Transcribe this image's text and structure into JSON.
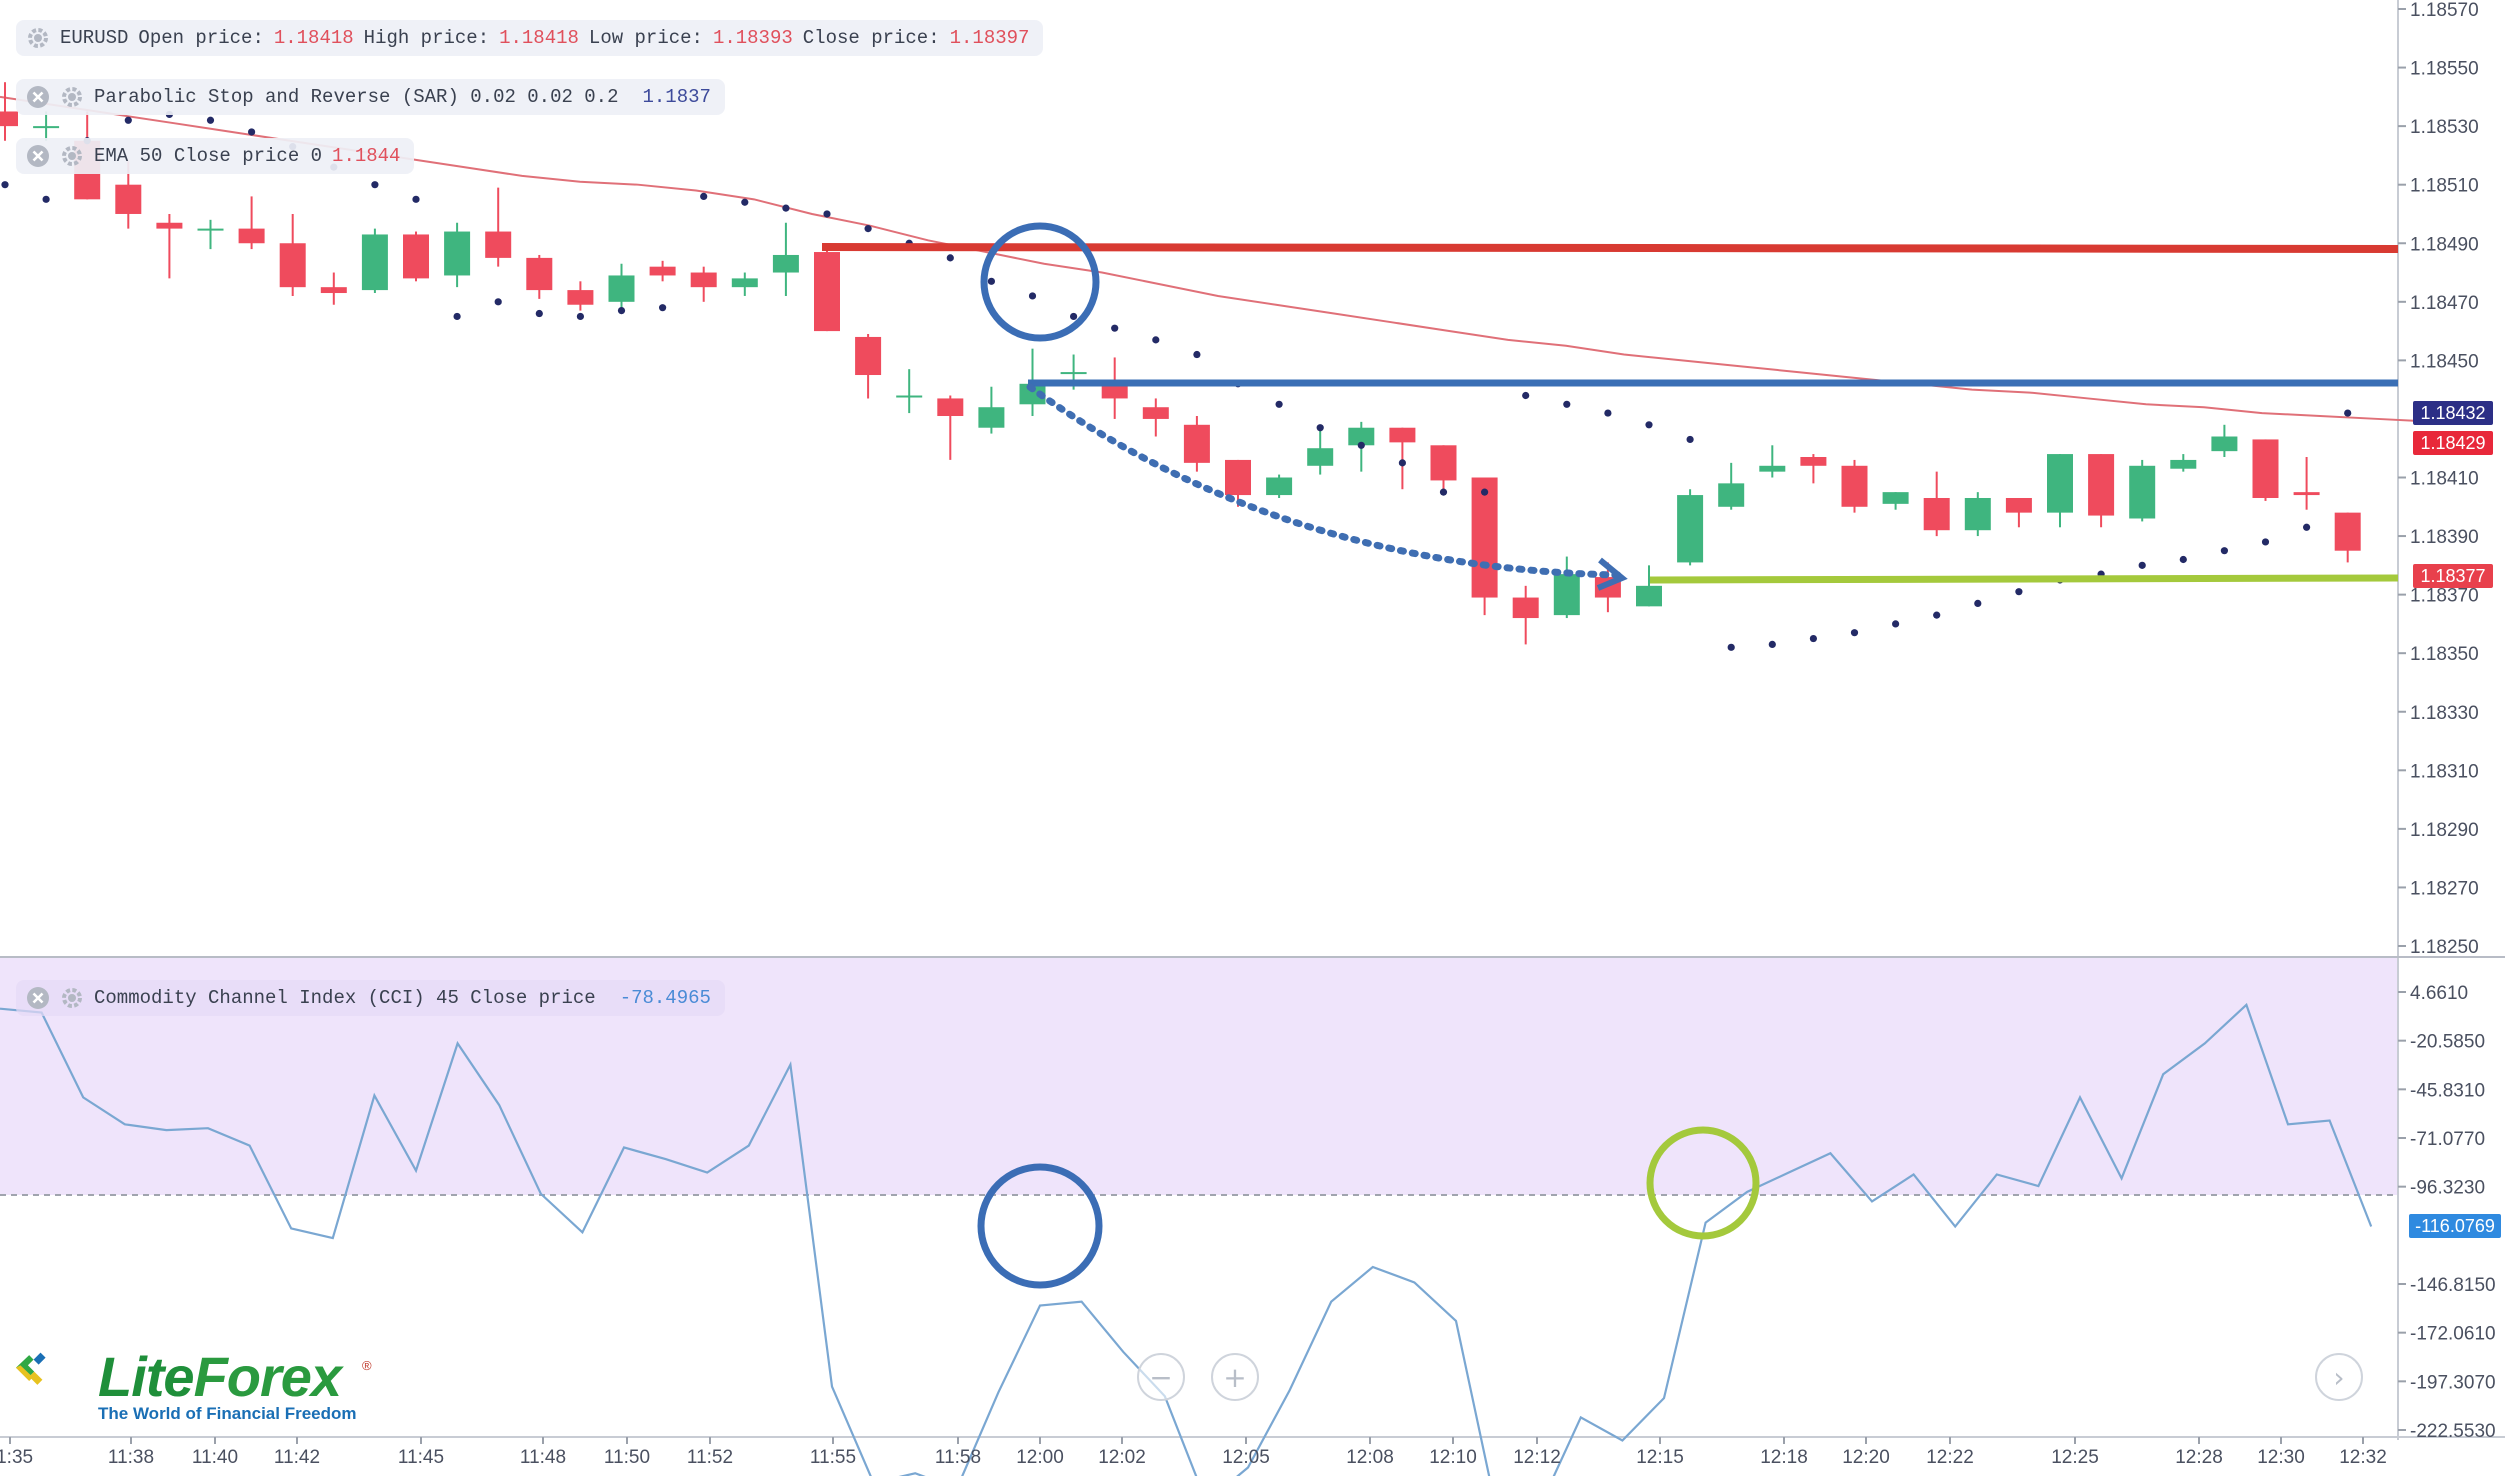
{
  "symbol": "EURUSD",
  "ohlc": {
    "open_label": "Open price:",
    "open": "1.18418",
    "high_label": "High price:",
    "high": "1.18418",
    "low_label": "Low price:",
    "low": "1.18393",
    "close_label": "Close price:",
    "close": "1.18397"
  },
  "indicators": {
    "sar": {
      "label": "Parabolic Stop and Reverse (SAR) 0.02 0.02 0.2",
      "value": "1.1837"
    },
    "ema": {
      "label": "EMA 50 Close price 0",
      "value": "1.1844"
    },
    "cci": {
      "label": "Commodity Channel Index (CCI) 45 Close price",
      "value": "-78.4965"
    }
  },
  "price_axis": {
    "ticks": [
      "1.18570",
      "1.18550",
      "1.18530",
      "1.18510",
      "1.18490",
      "1.18470",
      "1.18450",
      "1.18410",
      "1.18390",
      "1.18370",
      "1.18350",
      "1.18330",
      "1.18310",
      "1.18290",
      "1.18270",
      "1.18250"
    ],
    "badges": [
      {
        "value": "1.18432",
        "color": "#2c2f86"
      },
      {
        "value": "1.18429",
        "color": "#e8283a"
      },
      {
        "value": "1.18377",
        "color": "#e8404c"
      }
    ]
  },
  "cci_axis": {
    "ticks": [
      "4.6610",
      "-20.5850",
      "-45.8310",
      "-71.0770",
      "-96.3230",
      "-146.8150",
      "-172.0610",
      "-197.3070",
      "-222.5530"
    ],
    "badge": {
      "value": "-116.0769",
      "color": "#2f8ae0"
    }
  },
  "time_axis": {
    "labels": [
      "11:35",
      "11:38",
      "11:40",
      "11:42",
      "11:45",
      "11:48",
      "11:50",
      "11:52",
      "11:55",
      "11:58",
      "12:00",
      "12:02",
      "12:05",
      "12:08",
      "12:10",
      "12:12",
      "12:15",
      "12:18",
      "12:20",
      "12:22",
      "12:25",
      "12:28",
      "12:30",
      "12:32"
    ]
  },
  "chart_data": {
    "type": "candlestick",
    "price_ylim": [
      1.1825,
      1.1857
    ],
    "candles": [
      {
        "o": 1.18535,
        "h": 1.18545,
        "l": 1.18525,
        "c": 1.1853
      },
      {
        "o": 1.1853,
        "h": 1.18535,
        "l": 1.18525,
        "c": 1.1853
      },
      {
        "o": 1.18525,
        "h": 1.18535,
        "l": 1.18505,
        "c": 1.18505
      },
      {
        "o": 1.1851,
        "h": 1.18518,
        "l": 1.18495,
        "c": 1.185
      },
      {
        "o": 1.18497,
        "h": 1.185,
        "l": 1.18478,
        "c": 1.18495
      },
      {
        "o": 1.18495,
        "h": 1.18498,
        "l": 1.18488,
        "c": 1.18495
      },
      {
        "o": 1.18495,
        "h": 1.18506,
        "l": 1.18488,
        "c": 1.1849
      },
      {
        "o": 1.1849,
        "h": 1.185,
        "l": 1.18472,
        "c": 1.18475
      },
      {
        "o": 1.18475,
        "h": 1.1848,
        "l": 1.18469,
        "c": 1.18473
      },
      {
        "o": 1.18474,
        "h": 1.18495,
        "l": 1.18473,
        "c": 1.18493
      },
      {
        "o": 1.18493,
        "h": 1.18494,
        "l": 1.18477,
        "c": 1.18478
      },
      {
        "o": 1.18479,
        "h": 1.18497,
        "l": 1.18475,
        "c": 1.18494
      },
      {
        "o": 1.18494,
        "h": 1.18509,
        "l": 1.18482,
        "c": 1.18485
      },
      {
        "o": 1.18485,
        "h": 1.18486,
        "l": 1.18471,
        "c": 1.18474
      },
      {
        "o": 1.18474,
        "h": 1.18477,
        "l": 1.18467,
        "c": 1.18469
      },
      {
        "o": 1.1847,
        "h": 1.18483,
        "l": 1.18467,
        "c": 1.18479
      },
      {
        "o": 1.18482,
        "h": 1.18484,
        "l": 1.18477,
        "c": 1.18479
      },
      {
        "o": 1.1848,
        "h": 1.18482,
        "l": 1.1847,
        "c": 1.18475
      },
      {
        "o": 1.18475,
        "h": 1.1848,
        "l": 1.18472,
        "c": 1.18478
      },
      {
        "o": 1.1848,
        "h": 1.18497,
        "l": 1.18472,
        "c": 1.18486
      },
      {
        "o": 1.18487,
        "h": 1.18488,
        "l": 1.1846,
        "c": 1.1846
      },
      {
        "o": 1.18458,
        "h": 1.18459,
        "l": 1.18437,
        "c": 1.18445
      },
      {
        "o": 1.18438,
        "h": 1.18447,
        "l": 1.18432,
        "c": 1.18438
      },
      {
        "o": 1.18437,
        "h": 1.18438,
        "l": 1.18416,
        "c": 1.18431
      },
      {
        "o": 1.18427,
        "h": 1.18441,
        "l": 1.18425,
        "c": 1.18434
      },
      {
        "o": 1.18435,
        "h": 1.18454,
        "l": 1.18431,
        "c": 1.18442
      },
      {
        "o": 1.18446,
        "h": 1.18452,
        "l": 1.1844,
        "c": 1.18446
      },
      {
        "o": 1.18443,
        "h": 1.18451,
        "l": 1.1843,
        "c": 1.18437
      },
      {
        "o": 1.18434,
        "h": 1.18437,
        "l": 1.18424,
        "c": 1.1843
      },
      {
        "o": 1.18428,
        "h": 1.18431,
        "l": 1.18412,
        "c": 1.18415
      },
      {
        "o": 1.18416,
        "h": 1.18416,
        "l": 1.184,
        "c": 1.18404
      },
      {
        "o": 1.18404,
        "h": 1.18411,
        "l": 1.18403,
        "c": 1.1841
      },
      {
        "o": 1.18414,
        "h": 1.18426,
        "l": 1.18411,
        "c": 1.1842
      },
      {
        "o": 1.18421,
        "h": 1.18429,
        "l": 1.18412,
        "c": 1.18427
      },
      {
        "o": 1.18427,
        "h": 1.18427,
        "l": 1.18406,
        "c": 1.18422
      },
      {
        "o": 1.18421,
        "h": 1.18421,
        "l": 1.18406,
        "c": 1.18409
      },
      {
        "o": 1.1841,
        "h": 1.1841,
        "l": 1.18363,
        "c": 1.18369
      },
      {
        "o": 1.18369,
        "h": 1.18373,
        "l": 1.18353,
        "c": 1.18362
      },
      {
        "o": 1.18363,
        "h": 1.18383,
        "l": 1.18362,
        "c": 1.18377
      },
      {
        "o": 1.18376,
        "h": 1.18381,
        "l": 1.18364,
        "c": 1.18369
      },
      {
        "o": 1.18366,
        "h": 1.1838,
        "l": 1.18366,
        "c": 1.18373
      },
      {
        "o": 1.18381,
        "h": 1.18406,
        "l": 1.1838,
        "c": 1.18404
      },
      {
        "o": 1.184,
        "h": 1.18415,
        "l": 1.18399,
        "c": 1.18408
      },
      {
        "o": 1.18412,
        "h": 1.18421,
        "l": 1.1841,
        "c": 1.18414
      },
      {
        "o": 1.18417,
        "h": 1.18418,
        "l": 1.18408,
        "c": 1.18414
      },
      {
        "o": 1.18414,
        "h": 1.18416,
        "l": 1.18398,
        "c": 1.184
      },
      {
        "o": 1.18401,
        "h": 1.18405,
        "l": 1.18399,
        "c": 1.18405
      },
      {
        "o": 1.18403,
        "h": 1.18412,
        "l": 1.1839,
        "c": 1.18392
      },
      {
        "o": 1.18392,
        "h": 1.18405,
        "l": 1.1839,
        "c": 1.18403
      },
      {
        "o": 1.18403,
        "h": 1.18403,
        "l": 1.18393,
        "c": 1.18398
      },
      {
        "o": 1.18398,
        "h": 1.18418,
        "l": 1.18393,
        "c": 1.18418
      },
      {
        "o": 1.18418,
        "h": 1.18418,
        "l": 1.18393,
        "c": 1.18397
      },
      {
        "o": 1.18396,
        "h": 1.18416,
        "l": 1.18395,
        "c": 1.18414
      },
      {
        "o": 1.18413,
        "h": 1.18418,
        "l": 1.18412,
        "c": 1.18416
      },
      {
        "o": 1.18419,
        "h": 1.18428,
        "l": 1.18417,
        "c": 1.18424
      },
      {
        "o": 1.18423,
        "h": 1.18423,
        "l": 1.18402,
        "c": 1.18403
      },
      {
        "o": 1.18405,
        "h": 1.18417,
        "l": 1.18399,
        "c": 1.18404
      },
      {
        "o": 1.18398,
        "h": 1.18398,
        "l": 1.18381,
        "c": 1.18385
      }
    ],
    "ema": [
      1.1854,
      1.18537,
      1.18534,
      1.18531,
      1.18528,
      1.18525,
      1.18522,
      1.18519,
      1.18516,
      1.18513,
      1.18511,
      1.1851,
      1.18508,
      1.18505,
      1.185,
      1.18496,
      1.18491,
      1.18487,
      1.18483,
      1.1848,
      1.18476,
      1.18472,
      1.18469,
      1.18466,
      1.18463,
      1.1846,
      1.18457,
      1.18455,
      1.18452,
      1.1845,
      1.18448,
      1.18446,
      1.18444,
      1.18442,
      1.1844,
      1.18439,
      1.18437,
      1.18435,
      1.18434,
      1.18432,
      1.18431,
      1.1843,
      1.18429
    ],
    "sar": [
      [
        0,
        1.1851
      ],
      [
        1,
        1.18505
      ],
      [
        2,
        1.18525
      ],
      [
        3,
        1.18532
      ],
      [
        4,
        1.18534
      ],
      [
        5,
        1.18532
      ],
      [
        6,
        1.18528
      ],
      [
        7,
        1.18523
      ],
      [
        8,
        1.18516
      ],
      [
        9,
        1.1851
      ],
      [
        10,
        1.18505
      ],
      [
        11,
        1.18465
      ],
      [
        12,
        1.1847
      ],
      [
        13,
        1.18466
      ],
      [
        14,
        1.18465
      ],
      [
        15,
        1.18467
      ],
      [
        16,
        1.18468
      ],
      [
        17,
        1.18506
      ],
      [
        18,
        1.18504
      ],
      [
        19,
        1.18502
      ],
      [
        20,
        1.185
      ],
      [
        21,
        1.18495
      ],
      [
        22,
        1.1849
      ],
      [
        23,
        1.18485
      ],
      [
        24,
        1.18477
      ],
      [
        25,
        1.18472
      ],
      [
        26,
        1.18465
      ],
      [
        27,
        1.18461
      ],
      [
        28,
        1.18457
      ],
      [
        29,
        1.18452
      ],
      [
        30,
        1.18442
      ],
      [
        31,
        1.18435
      ],
      [
        32,
        1.18427
      ],
      [
        33,
        1.18421
      ],
      [
        34,
        1.18415
      ],
      [
        35,
        1.18405
      ],
      [
        36,
        1.18405
      ],
      [
        37,
        1.18438
      ],
      [
        38,
        1.18435
      ],
      [
        39,
        1.18432
      ],
      [
        40,
        1.18428
      ],
      [
        41,
        1.18423
      ],
      [
        42,
        1.18352
      ],
      [
        43,
        1.18353
      ],
      [
        44,
        1.18355
      ],
      [
        45,
        1.18357
      ],
      [
        46,
        1.1836
      ],
      [
        47,
        1.18363
      ],
      [
        48,
        1.18367
      ],
      [
        49,
        1.18371
      ],
      [
        50,
        1.18375
      ],
      [
        51,
        1.18377
      ],
      [
        52,
        1.1838
      ],
      [
        53,
        1.18382
      ],
      [
        54,
        1.18385
      ],
      [
        55,
        1.18388
      ],
      [
        56,
        1.18393
      ],
      [
        57,
        1.18432
      ]
    ],
    "cci": [
      -4,
      -6,
      -50,
      -64,
      -67,
      -66,
      -75,
      -118,
      -123,
      -49,
      -88,
      -22,
      -54,
      -100,
      -120,
      -76,
      -82,
      -89,
      -75,
      -33,
      -200,
      -250,
      -245,
      -253,
      -203,
      -158,
      -156,
      -182,
      -205,
      -260,
      -242,
      -202,
      -156,
      -138,
      -146,
      -166,
      -267,
      -263,
      -216,
      -228,
      -206,
      -115,
      -99,
      -89,
      -79,
      -104,
      -90,
      -117,
      -90,
      -96,
      -50,
      -92,
      -38,
      -22,
      -2,
      -64,
      -62,
      -117
    ],
    "cci_ylim": [
      -228,
      20
    ],
    "cci_level": -96.323,
    "levels": {
      "red": 1.18488,
      "blue": 1.18438,
      "green": 1.18378
    }
  }
}
